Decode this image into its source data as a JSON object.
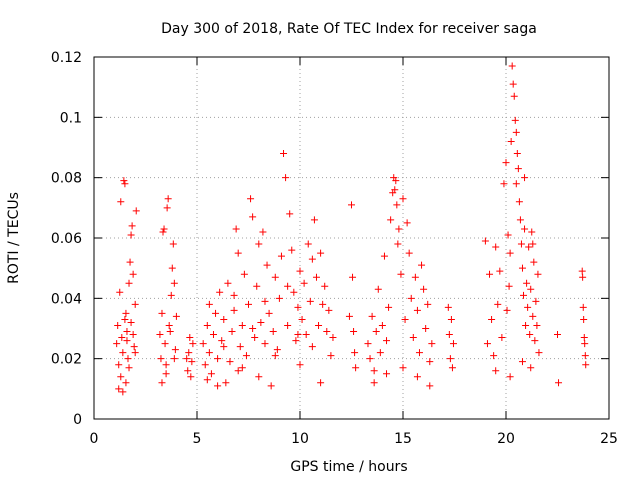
{
  "chart_data": {
    "type": "scatter",
    "title": "Day 300 of 2018, Rate Of TEC Index for receiver saga",
    "xlabel": "GPS time / hours",
    "ylabel": "ROTI / TECUs",
    "xlim": [
      0,
      25
    ],
    "ylim": [
      0,
      0.12
    ],
    "x_ticks": [
      "0",
      "5",
      "10",
      "15",
      "20",
      "25"
    ],
    "y_ticks": [
      "0",
      "0.02",
      "0.04",
      "0.06",
      "0.08",
      "0.1",
      "0.12"
    ],
    "grid": true,
    "marker": "plus",
    "series": [
      {
        "color": "#ff0000",
        "points": [
          [
            1.1,
            0.025
          ],
          [
            1.15,
            0.031
          ],
          [
            1.2,
            0.018
          ],
          [
            1.25,
            0.042
          ],
          [
            1.3,
            0.072
          ],
          [
            1.35,
            0.027
          ],
          [
            1.4,
            0.022
          ],
          [
            1.45,
            0.079
          ],
          [
            1.5,
            0.078
          ],
          [
            1.55,
            0.035
          ],
          [
            1.6,
            0.029
          ],
          [
            1.65,
            0.02
          ],
          [
            1.7,
            0.045
          ],
          [
            1.75,
            0.052
          ],
          [
            1.8,
            0.061
          ],
          [
            1.85,
            0.064
          ],
          [
            1.9,
            0.048
          ],
          [
            1.95,
            0.024
          ],
          [
            2.0,
            0.038
          ],
          [
            2.05,
            0.069
          ],
          [
            1.2,
            0.01
          ],
          [
            1.3,
            0.014
          ],
          [
            1.4,
            0.009
          ],
          [
            1.5,
            0.033
          ],
          [
            1.6,
            0.026
          ],
          [
            1.7,
            0.017
          ],
          [
            1.8,
            0.032
          ],
          [
            1.9,
            0.028
          ],
          [
            2.0,
            0.022
          ],
          [
            1.55,
            0.012
          ],
          [
            3.2,
            0.028
          ],
          [
            3.25,
            0.02
          ],
          [
            3.3,
            0.035
          ],
          [
            3.35,
            0.062
          ],
          [
            3.4,
            0.063
          ],
          [
            3.45,
            0.025
          ],
          [
            3.5,
            0.018
          ],
          [
            3.55,
            0.07
          ],
          [
            3.6,
            0.073
          ],
          [
            3.65,
            0.031
          ],
          [
            3.7,
            0.029
          ],
          [
            3.75,
            0.041
          ],
          [
            3.8,
            0.05
          ],
          [
            3.85,
            0.058
          ],
          [
            3.9,
            0.045
          ],
          [
            3.95,
            0.023
          ],
          [
            4.0,
            0.034
          ],
          [
            3.3,
            0.012
          ],
          [
            3.5,
            0.015
          ],
          [
            3.9,
            0.02
          ],
          [
            4.5,
            0.02
          ],
          [
            4.55,
            0.016
          ],
          [
            4.6,
            0.022
          ],
          [
            4.65,
            0.027
          ],
          [
            4.7,
            0.014
          ],
          [
            4.75,
            0.019
          ],
          [
            4.8,
            0.025
          ],
          [
            5.3,
            0.025
          ],
          [
            5.4,
            0.018
          ],
          [
            5.5,
            0.031
          ],
          [
            5.6,
            0.022
          ],
          [
            5.7,
            0.015
          ],
          [
            5.8,
            0.028
          ],
          [
            5.9,
            0.035
          ],
          [
            6.0,
            0.02
          ],
          [
            6.1,
            0.042
          ],
          [
            6.2,
            0.026
          ],
          [
            6.3,
            0.033
          ],
          [
            6.4,
            0.012
          ],
          [
            6.5,
            0.045
          ],
          [
            6.6,
            0.019
          ],
          [
            6.7,
            0.029
          ],
          [
            6.8,
            0.036
          ],
          [
            6.9,
            0.063
          ],
          [
            7.0,
            0.055
          ],
          [
            7.1,
            0.024
          ],
          [
            7.2,
            0.031
          ],
          [
            7.3,
            0.048
          ],
          [
            7.4,
            0.021
          ],
          [
            7.5,
            0.038
          ],
          [
            7.6,
            0.073
          ],
          [
            7.7,
            0.067
          ],
          [
            7.8,
            0.027
          ],
          [
            7.9,
            0.044
          ],
          [
            8.0,
            0.058
          ],
          [
            8.1,
            0.032
          ],
          [
            8.2,
            0.062
          ],
          [
            8.3,
            0.025
          ],
          [
            8.4,
            0.051
          ],
          [
            8.5,
            0.035
          ],
          [
            8.6,
            0.011
          ],
          [
            8.7,
            0.029
          ],
          [
            8.8,
            0.047
          ],
          [
            8.9,
            0.023
          ],
          [
            9.0,
            0.04
          ],
          [
            9.1,
            0.054
          ],
          [
            9.2,
            0.088
          ],
          [
            9.3,
            0.08
          ],
          [
            9.4,
            0.031
          ],
          [
            9.5,
            0.068
          ],
          [
            9.6,
            0.056
          ],
          [
            9.7,
            0.042
          ],
          [
            9.8,
            0.026
          ],
          [
            9.9,
            0.037
          ],
          [
            10.0,
            0.049
          ],
          [
            10.1,
            0.033
          ],
          [
            10.2,
            0.045
          ],
          [
            10.3,
            0.028
          ],
          [
            10.4,
            0.058
          ],
          [
            10.5,
            0.039
          ],
          [
            10.6,
            0.053
          ],
          [
            10.7,
            0.066
          ],
          [
            10.8,
            0.047
          ],
          [
            10.9,
            0.031
          ],
          [
            11.0,
            0.055
          ],
          [
            11.1,
            0.038
          ],
          [
            11.2,
            0.044
          ],
          [
            11.3,
            0.029
          ],
          [
            11.4,
            0.036
          ],
          [
            11.5,
            0.021
          ],
          [
            11.6,
            0.027
          ],
          [
            5.5,
            0.013
          ],
          [
            6.0,
            0.011
          ],
          [
            7.0,
            0.016
          ],
          [
            8.0,
            0.014
          ],
          [
            10.0,
            0.018
          ],
          [
            11.0,
            0.012
          ],
          [
            5.6,
            0.038
          ],
          [
            6.3,
            0.024
          ],
          [
            6.8,
            0.041
          ],
          [
            7.2,
            0.017
          ],
          [
            7.7,
            0.03
          ],
          [
            8.3,
            0.039
          ],
          [
            8.8,
            0.021
          ],
          [
            9.4,
            0.044
          ],
          [
            9.9,
            0.028
          ],
          [
            10.6,
            0.024
          ],
          [
            12.5,
            0.071
          ],
          [
            12.55,
            0.047
          ],
          [
            12.6,
            0.029
          ],
          [
            12.65,
            0.022
          ],
          [
            12.7,
            0.017
          ],
          [
            12.4,
            0.034
          ],
          [
            13.3,
            0.025
          ],
          [
            13.4,
            0.02
          ],
          [
            13.5,
            0.034
          ],
          [
            13.6,
            0.016
          ],
          [
            13.7,
            0.029
          ],
          [
            13.8,
            0.043
          ],
          [
            13.9,
            0.022
          ],
          [
            14.0,
            0.031
          ],
          [
            14.1,
            0.054
          ],
          [
            14.2,
            0.026
          ],
          [
            14.3,
            0.037
          ],
          [
            14.4,
            0.066
          ],
          [
            14.5,
            0.075
          ],
          [
            14.55,
            0.08
          ],
          [
            14.6,
            0.076
          ],
          [
            14.65,
            0.079
          ],
          [
            14.7,
            0.071
          ],
          [
            14.75,
            0.058
          ],
          [
            14.8,
            0.063
          ],
          [
            14.9,
            0.048
          ],
          [
            15.0,
            0.073
          ],
          [
            15.1,
            0.033
          ],
          [
            15.2,
            0.065
          ],
          [
            15.3,
            0.055
          ],
          [
            15.4,
            0.04
          ],
          [
            15.5,
            0.027
          ],
          [
            15.6,
            0.047
          ],
          [
            15.7,
            0.036
          ],
          [
            15.8,
            0.022
          ],
          [
            15.9,
            0.051
          ],
          [
            16.0,
            0.043
          ],
          [
            16.1,
            0.03
          ],
          [
            16.2,
            0.038
          ],
          [
            16.3,
            0.019
          ],
          [
            16.4,
            0.025
          ],
          [
            13.6,
            0.012
          ],
          [
            14.2,
            0.015
          ],
          [
            15.0,
            0.017
          ],
          [
            15.7,
            0.014
          ],
          [
            16.3,
            0.011
          ],
          [
            17.2,
            0.037
          ],
          [
            17.25,
            0.028
          ],
          [
            17.3,
            0.02
          ],
          [
            17.35,
            0.033
          ],
          [
            17.4,
            0.017
          ],
          [
            17.45,
            0.025
          ],
          [
            19.0,
            0.059
          ],
          [
            19.1,
            0.025
          ],
          [
            19.2,
            0.048
          ],
          [
            19.3,
            0.033
          ],
          [
            19.4,
            0.021
          ],
          [
            19.5,
            0.057
          ],
          [
            19.6,
            0.038
          ],
          [
            19.7,
            0.049
          ],
          [
            19.8,
            0.027
          ],
          [
            19.9,
            0.078
          ],
          [
            20.0,
            0.085
          ],
          [
            20.05,
            0.036
          ],
          [
            20.1,
            0.061
          ],
          [
            20.15,
            0.044
          ],
          [
            20.2,
            0.055
          ],
          [
            20.25,
            0.092
          ],
          [
            20.3,
            0.117
          ],
          [
            20.35,
            0.111
          ],
          [
            20.4,
            0.107
          ],
          [
            20.45,
            0.099
          ],
          [
            20.5,
            0.095
          ],
          [
            20.55,
            0.088
          ],
          [
            20.6,
            0.083
          ],
          [
            20.65,
            0.072
          ],
          [
            20.7,
            0.066
          ],
          [
            20.75,
            0.058
          ],
          [
            20.8,
            0.05
          ],
          [
            20.85,
            0.041
          ],
          [
            20.9,
            0.063
          ],
          [
            20.95,
            0.031
          ],
          [
            21.0,
            0.045
          ],
          [
            21.05,
            0.037
          ],
          [
            21.1,
            0.057
          ],
          [
            21.15,
            0.028
          ],
          [
            21.2,
            0.043
          ],
          [
            21.25,
            0.062
          ],
          [
            21.3,
            0.034
          ],
          [
            21.35,
            0.052
          ],
          [
            21.4,
            0.026
          ],
          [
            21.45,
            0.039
          ],
          [
            21.5,
            0.031
          ],
          [
            21.55,
            0.048
          ],
          [
            21.6,
            0.022
          ],
          [
            19.5,
            0.016
          ],
          [
            20.2,
            0.014
          ],
          [
            20.8,
            0.019
          ],
          [
            21.2,
            0.017
          ],
          [
            20.5,
            0.078
          ],
          [
            20.9,
            0.08
          ],
          [
            21.3,
            0.058
          ],
          [
            22.5,
            0.028
          ],
          [
            22.55,
            0.012
          ],
          [
            23.7,
            0.049
          ],
          [
            23.72,
            0.047
          ],
          [
            23.75,
            0.037
          ],
          [
            23.77,
            0.033
          ],
          [
            23.8,
            0.027
          ],
          [
            23.82,
            0.025
          ],
          [
            23.85,
            0.021
          ],
          [
            23.87,
            0.018
          ]
        ]
      }
    ]
  }
}
